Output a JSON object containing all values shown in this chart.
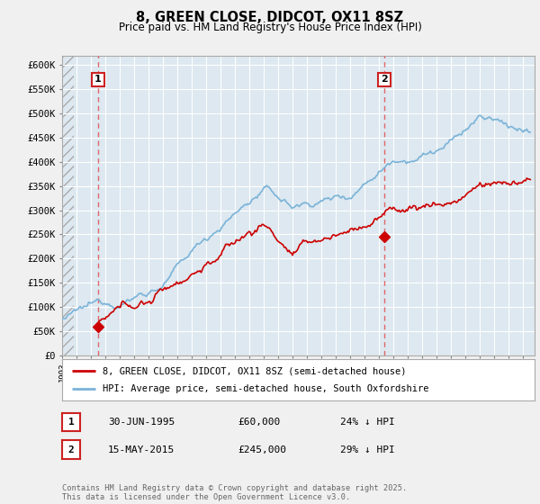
{
  "title": "8, GREEN CLOSE, DIDCOT, OX11 8SZ",
  "subtitle": "Price paid vs. HM Land Registry's House Price Index (HPI)",
  "ylim": [
    0,
    620000
  ],
  "yticks": [
    0,
    50000,
    100000,
    150000,
    200000,
    250000,
    300000,
    350000,
    400000,
    450000,
    500000,
    550000,
    600000
  ],
  "ytick_labels": [
    "£0",
    "£50K",
    "£100K",
    "£150K",
    "£200K",
    "£250K",
    "£300K",
    "£350K",
    "£400K",
    "£450K",
    "£500K",
    "£550K",
    "£600K"
  ],
  "hpi_color": "#7ab3d8",
  "price_color": "#cc0000",
  "marker_color": "#cc0000",
  "sale1_x": 1995.5,
  "sale1_y": 60000,
  "sale2_x": 2015.37,
  "sale2_y": 245000,
  "annotation1": [
    "1",
    "30-JUN-1995",
    "£60,000",
    "24% ↓ HPI"
  ],
  "annotation2": [
    "2",
    "15-MAY-2015",
    "£245,000",
    "29% ↓ HPI"
  ],
  "legend_line1": "8, GREEN CLOSE, DIDCOT, OX11 8SZ (semi-detached house)",
  "legend_line2": "HPI: Average price, semi-detached house, South Oxfordshire",
  "footnote": "Contains HM Land Registry data © Crown copyright and database right 2025.\nThis data is licensed under the Open Government Licence v3.0.",
  "background_color": "#f0f0f0",
  "plot_bg_color": "#dde8f0",
  "xmin": 1993,
  "xmax": 2025.8
}
